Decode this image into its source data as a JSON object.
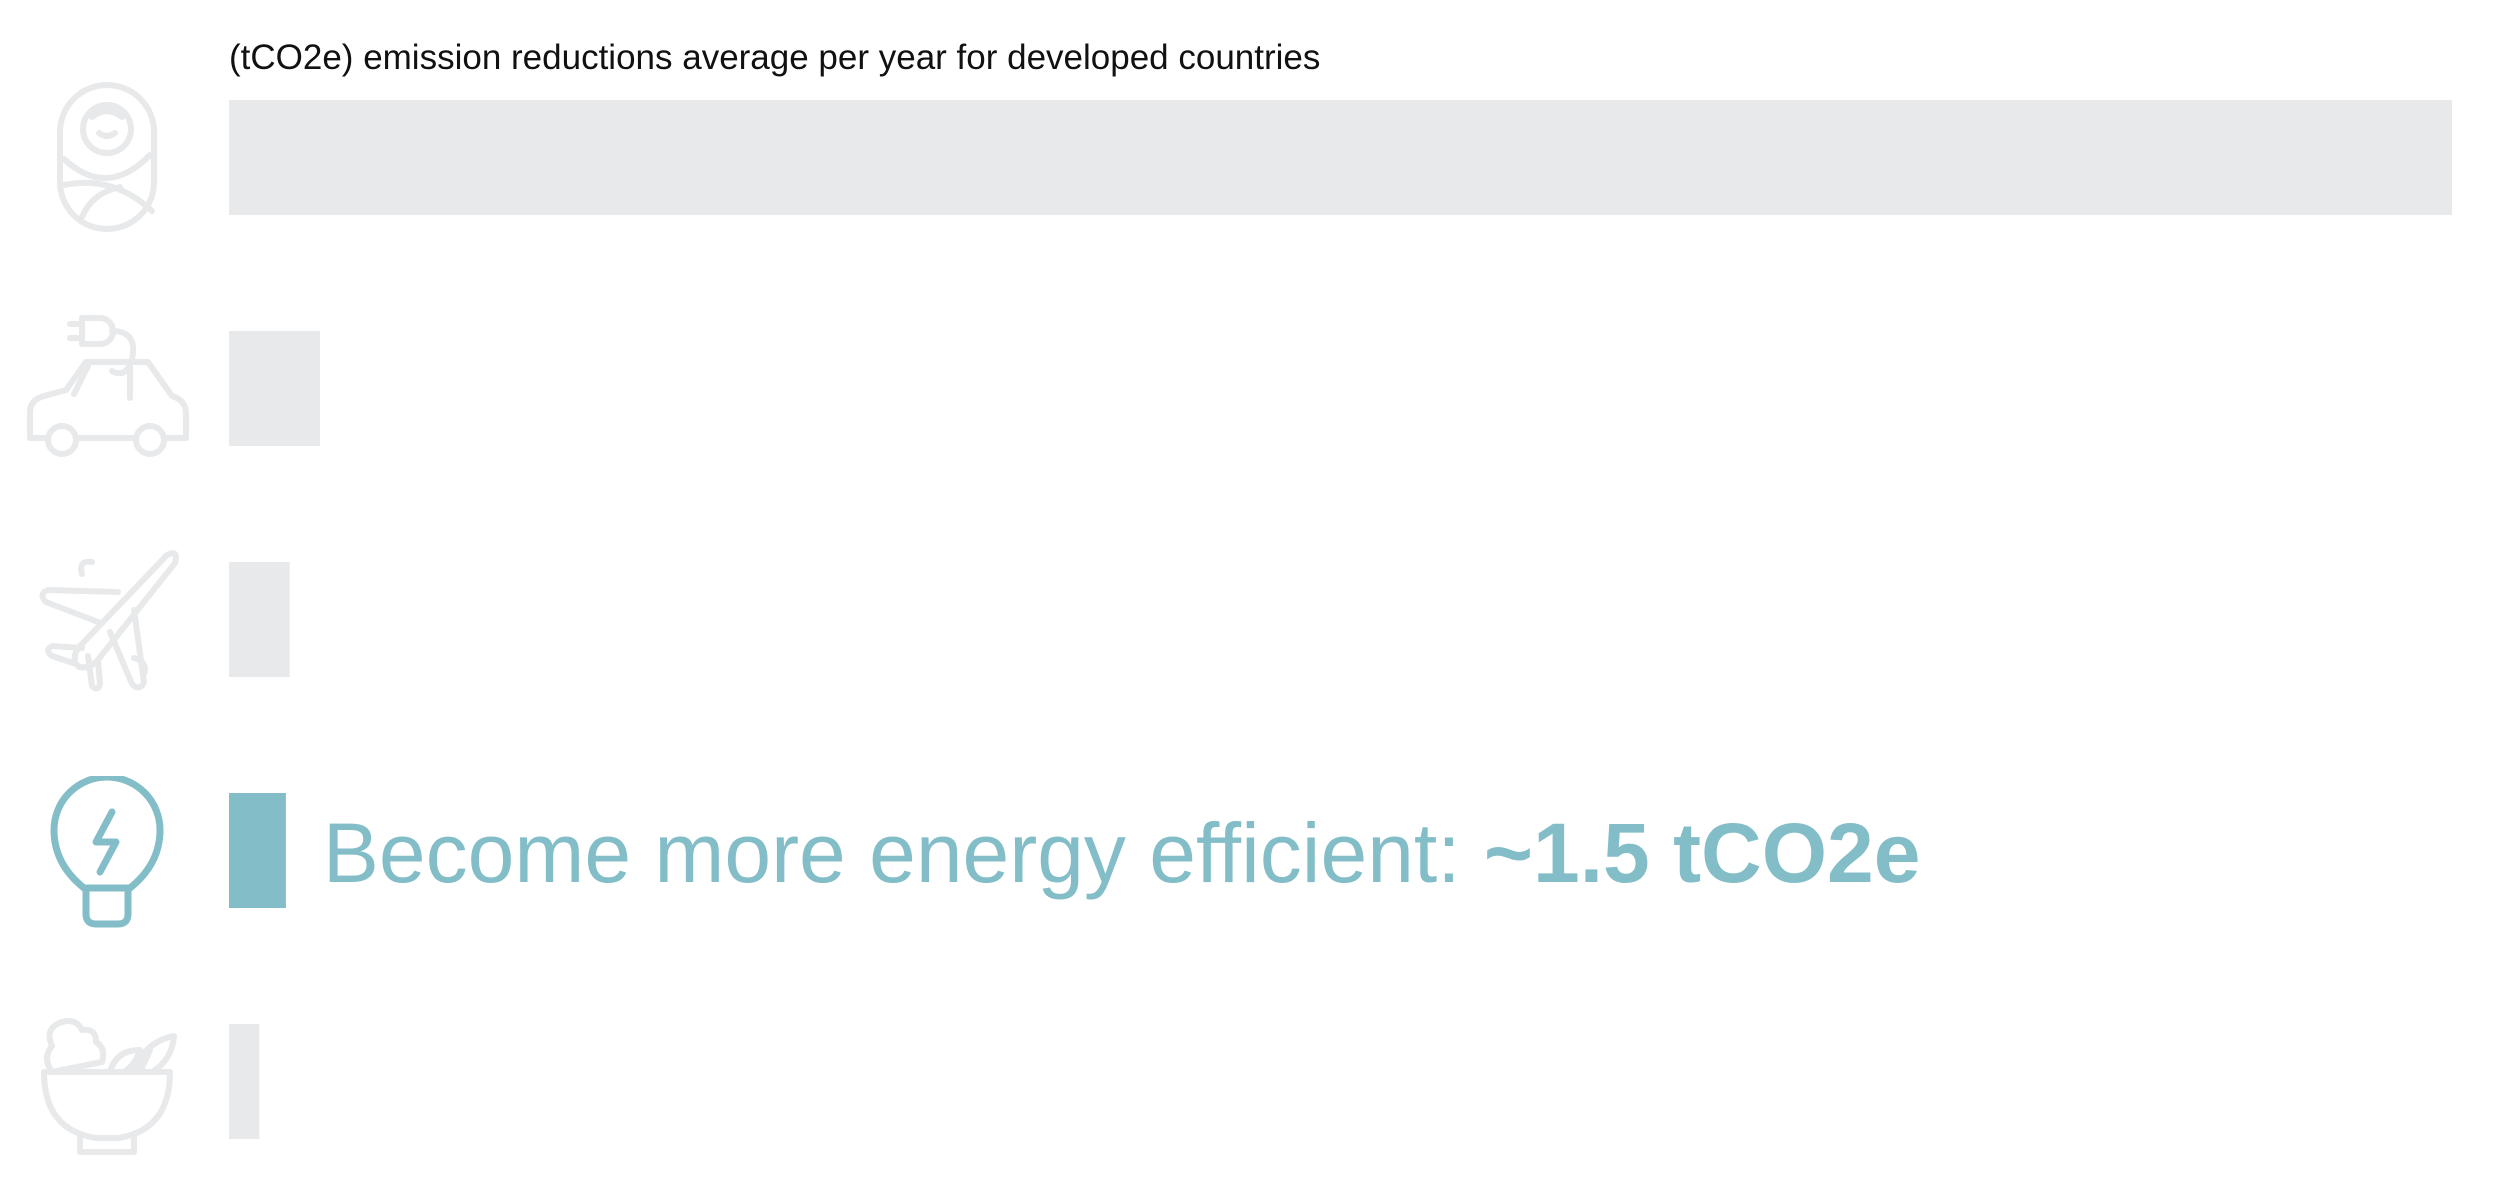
{
  "colors": {
    "muted": "#E8E9EB",
    "highlight": "#83BEC8",
    "title": "#111111"
  },
  "chart_data": {
    "type": "bar",
    "orientation": "horizontal",
    "title": "(tCO2e) emission reductions average per year for developed countries",
    "xlim": [
      0,
      58.6
    ],
    "grid": false,
    "legend": "none",
    "categories": [
      {
        "icon": "baby-icon",
        "value": 58.6,
        "highlighted": false
      },
      {
        "icon": "electric-car-icon",
        "value": 2.4,
        "highlighted": false
      },
      {
        "icon": "airplane-icon",
        "value": 1.6,
        "highlighted": false
      },
      {
        "icon": "lightbulb-icon",
        "value": 1.5,
        "highlighted": true,
        "label": "Become more energy efficient:",
        "value_label": "~1.5 tCO2e"
      },
      {
        "icon": "salad-bowl-icon",
        "value": 0.8,
        "highlighted": false
      }
    ]
  }
}
